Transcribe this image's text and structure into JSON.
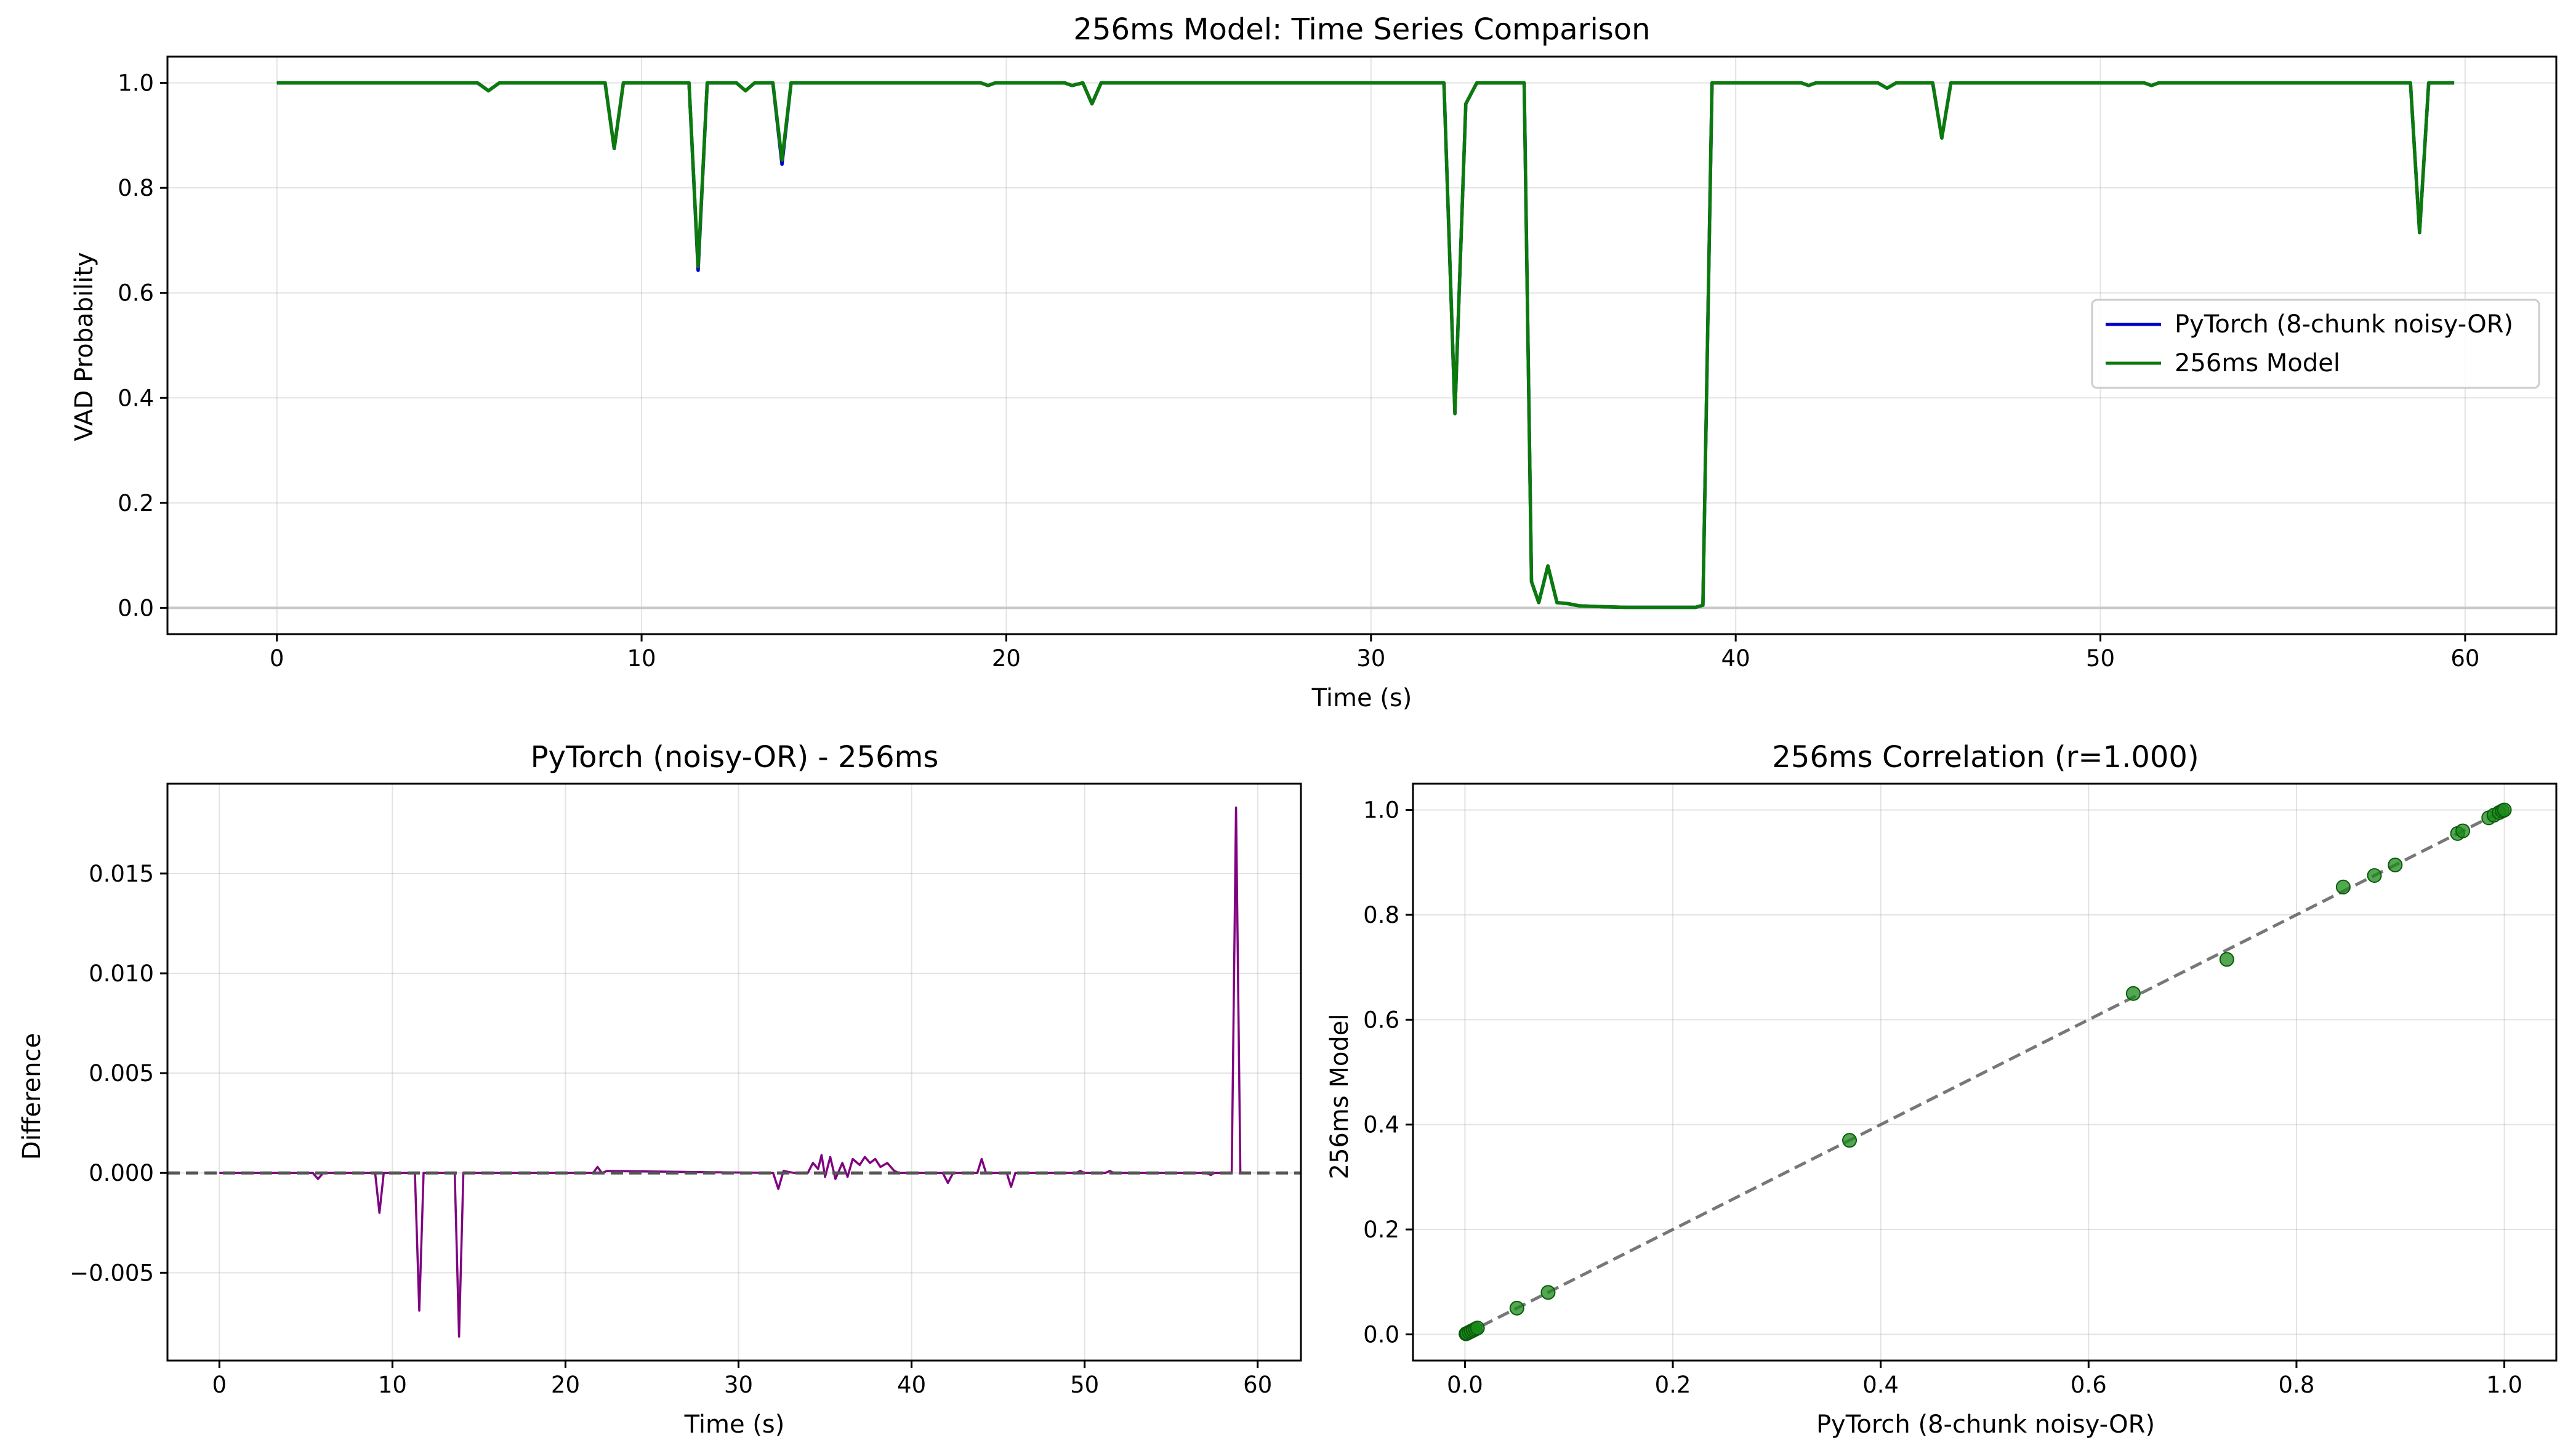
{
  "chart_data": [
    {
      "type": "line",
      "title": "256ms Model: Time Series Comparison",
      "xlabel": "Time (s)",
      "ylabel": "VAD Probability",
      "xlim": [
        -3,
        62.5
      ],
      "ylim": [
        -0.05,
        1.05
      ],
      "xticks": [
        0,
        10,
        20,
        30,
        40,
        50,
        60
      ],
      "yticks": [
        0.0,
        0.2,
        0.4,
        0.6,
        0.8,
        1.0
      ],
      "xtick_labels": [
        "0",
        "10",
        "20",
        "30",
        "40",
        "50",
        "60"
      ],
      "ytick_labels": [
        "0.0",
        "0.2",
        "0.4",
        "0.6",
        "0.8",
        "1.0"
      ],
      "grid": true,
      "legend_position": "center-right",
      "series": [
        {
          "name": "PyTorch (8-chunk noisy-OR)",
          "color": "#0000cc",
          "x": [
            0,
            5.5,
            5.8,
            6.1,
            9.0,
            9.25,
            9.5,
            11.3,
            11.55,
            11.8,
            12.6,
            12.85,
            13.1,
            13.6,
            13.85,
            14.1,
            19.3,
            19.5,
            19.7,
            21.6,
            21.8,
            22.1,
            22.35,
            22.6,
            32.0,
            32.3,
            32.6,
            32.9,
            34.2,
            34.4,
            34.6,
            34.85,
            35.1,
            35.4,
            35.7,
            36.0,
            36.5,
            37.0,
            37.5,
            38.0,
            38.5,
            38.9,
            39.1,
            39.35,
            41.8,
            42.0,
            42.2,
            43.9,
            44.15,
            44.4,
            45.4,
            45.65,
            45.9,
            51.2,
            51.4,
            51.6,
            58.5,
            58.75,
            59.0,
            59.2,
            59.7
          ],
          "y": [
            1.0,
            1.0,
            0.985,
            1.0,
            1.0,
            0.875,
            1.0,
            1.0,
            0.643,
            1.0,
            1.0,
            0.985,
            1.0,
            1.0,
            0.845,
            1.0,
            1.0,
            0.995,
            1.0,
            1.0,
            0.995,
            1.0,
            0.96,
            1.0,
            1.0,
            0.37,
            0.96,
            1.0,
            1.0,
            0.05,
            0.01,
            0.08,
            0.01,
            0.008,
            0.004,
            0.003,
            0.002,
            0.001,
            0.001,
            0.001,
            0.001,
            0.001,
            0.005,
            1.0,
            1.0,
            0.995,
            1.0,
            1.0,
            0.99,
            1.0,
            1.0,
            0.895,
            1.0,
            1.0,
            0.995,
            1.0,
            1.0,
            0.715,
            1.0,
            1.0,
            1.0
          ]
        },
        {
          "name": "256ms Model",
          "color": "#0b7a0b",
          "x": [
            0,
            5.5,
            5.8,
            6.1,
            9.0,
            9.25,
            9.5,
            11.3,
            11.55,
            11.8,
            12.6,
            12.85,
            13.1,
            13.6,
            13.85,
            14.1,
            19.3,
            19.5,
            19.7,
            21.6,
            21.8,
            22.1,
            22.35,
            22.6,
            32.0,
            32.3,
            32.6,
            32.9,
            34.2,
            34.4,
            34.6,
            34.85,
            35.1,
            35.4,
            35.7,
            36.0,
            36.5,
            37.0,
            37.5,
            38.0,
            38.5,
            38.9,
            39.1,
            39.35,
            41.8,
            42.0,
            42.2,
            43.9,
            44.15,
            44.4,
            45.4,
            45.65,
            45.9,
            51.2,
            51.4,
            51.6,
            58.5,
            58.75,
            59.0,
            59.2,
            59.7
          ],
          "y": [
            1.0,
            1.0,
            0.985,
            1.0,
            1.0,
            0.875,
            1.0,
            1.0,
            0.65,
            1.0,
            1.0,
            0.985,
            1.0,
            1.0,
            0.853,
            1.0,
            1.0,
            0.995,
            1.0,
            1.0,
            0.995,
            1.0,
            0.96,
            1.0,
            1.0,
            0.37,
            0.96,
            1.0,
            1.0,
            0.05,
            0.01,
            0.08,
            0.01,
            0.008,
            0.004,
            0.003,
            0.002,
            0.001,
            0.001,
            0.001,
            0.001,
            0.001,
            0.005,
            1.0,
            1.0,
            0.995,
            1.0,
            1.0,
            0.99,
            1.0,
            1.0,
            0.895,
            1.0,
            1.0,
            0.995,
            1.0,
            1.0,
            0.715,
            1.0,
            1.0,
            1.0
          ]
        }
      ],
      "reference_line_y": 0.0
    },
    {
      "type": "line",
      "title": "PyTorch (noisy-OR) - 256ms",
      "xlabel": "Time (s)",
      "ylabel": "Difference",
      "xlim": [
        -3,
        62.5
      ],
      "ylim": [
        -0.0094,
        0.0195
      ],
      "xticks": [
        0,
        10,
        20,
        30,
        40,
        50,
        60
      ],
      "yticks": [
        -0.005,
        0.0,
        0.005,
        0.01,
        0.015
      ],
      "xtick_labels": [
        "0",
        "10",
        "20",
        "30",
        "40",
        "50",
        "60"
      ],
      "ytick_labels": [
        "−0.005",
        "0.000",
        "0.005",
        "0.010",
        "0.015"
      ],
      "grid": true,
      "series": [
        {
          "name": "difference",
          "color": "#800080",
          "x": [
            0,
            5.4,
            5.7,
            6.0,
            9.0,
            9.25,
            9.5,
            11.3,
            11.55,
            11.8,
            13.6,
            13.85,
            14.1,
            21.6,
            21.85,
            22.1,
            22.4,
            32.0,
            32.3,
            32.6,
            33.2,
            34.0,
            34.3,
            34.6,
            34.8,
            35.0,
            35.3,
            35.6,
            36.0,
            36.3,
            36.6,
            37.0,
            37.3,
            37.6,
            37.9,
            38.2,
            38.6,
            39.0,
            39.3,
            41.8,
            42.1,
            42.4,
            43.8,
            44.05,
            44.3,
            45.5,
            45.75,
            46.0,
            49.5,
            49.75,
            50.0,
            51.2,
            51.45,
            51.7,
            57.0,
            57.3,
            57.5,
            58.5,
            58.75,
            59.0,
            59.3
          ],
          "y": [
            0,
            0,
            -0.0003,
            0,
            0,
            -0.002,
            0,
            0,
            -0.0069,
            0,
            0,
            -0.0082,
            0,
            0,
            0.0003,
            0,
            0.0001,
            0,
            -0.0008,
            0.0001,
            0,
            0,
            0.0005,
            0.0002,
            0.0009,
            -0.0002,
            0.0008,
            -0.0003,
            0.0005,
            -0.0002,
            0.0007,
            0.0004,
            0.0008,
            0.0005,
            0.0007,
            0.0003,
            0.0005,
            0.0001,
            0,
            0,
            -0.0005,
            0,
            0,
            0.0007,
            0,
            0,
            -0.0007,
            0,
            0,
            0.0001,
            0,
            0,
            0.0001,
            0,
            0,
            -0.0001,
            0,
            0,
            0.0183,
            0,
            0
          ]
        }
      ],
      "reference_line_y": 0.0
    },
    {
      "type": "scatter",
      "title": "256ms Correlation (r=1.000)",
      "xlabel": "PyTorch (8-chunk noisy-OR)",
      "ylabel": "256ms Model",
      "xlim": [
        -0.05,
        1.05
      ],
      "ylim": [
        -0.05,
        1.05
      ],
      "xticks": [
        0.0,
        0.2,
        0.4,
        0.6,
        0.8,
        1.0
      ],
      "yticks": [
        0.0,
        0.2,
        0.4,
        0.6,
        0.8,
        1.0
      ],
      "xtick_labels": [
        "0.0",
        "0.2",
        "0.4",
        "0.6",
        "0.8",
        "1.0"
      ],
      "ytick_labels": [
        "0.0",
        "0.2",
        "0.4",
        "0.6",
        "0.8",
        "1.0"
      ],
      "grid": true,
      "point_color": "#1a8a1a",
      "reference_line": [
        [
          0,
          0
        ],
        [
          1,
          1
        ]
      ],
      "x": [
        0.001,
        0.002,
        0.004,
        0.006,
        0.008,
        0.01,
        0.012,
        0.05,
        0.08,
        0.37,
        0.643,
        0.733,
        0.845,
        0.875,
        0.895,
        0.955,
        0.96,
        0.985,
        0.99,
        0.995,
        0.998,
        1.0
      ],
      "y": [
        0.001,
        0.002,
        0.004,
        0.006,
        0.008,
        0.01,
        0.012,
        0.05,
        0.08,
        0.37,
        0.65,
        0.715,
        0.853,
        0.875,
        0.895,
        0.955,
        0.96,
        0.985,
        0.99,
        0.995,
        0.998,
        1.0
      ]
    }
  ]
}
